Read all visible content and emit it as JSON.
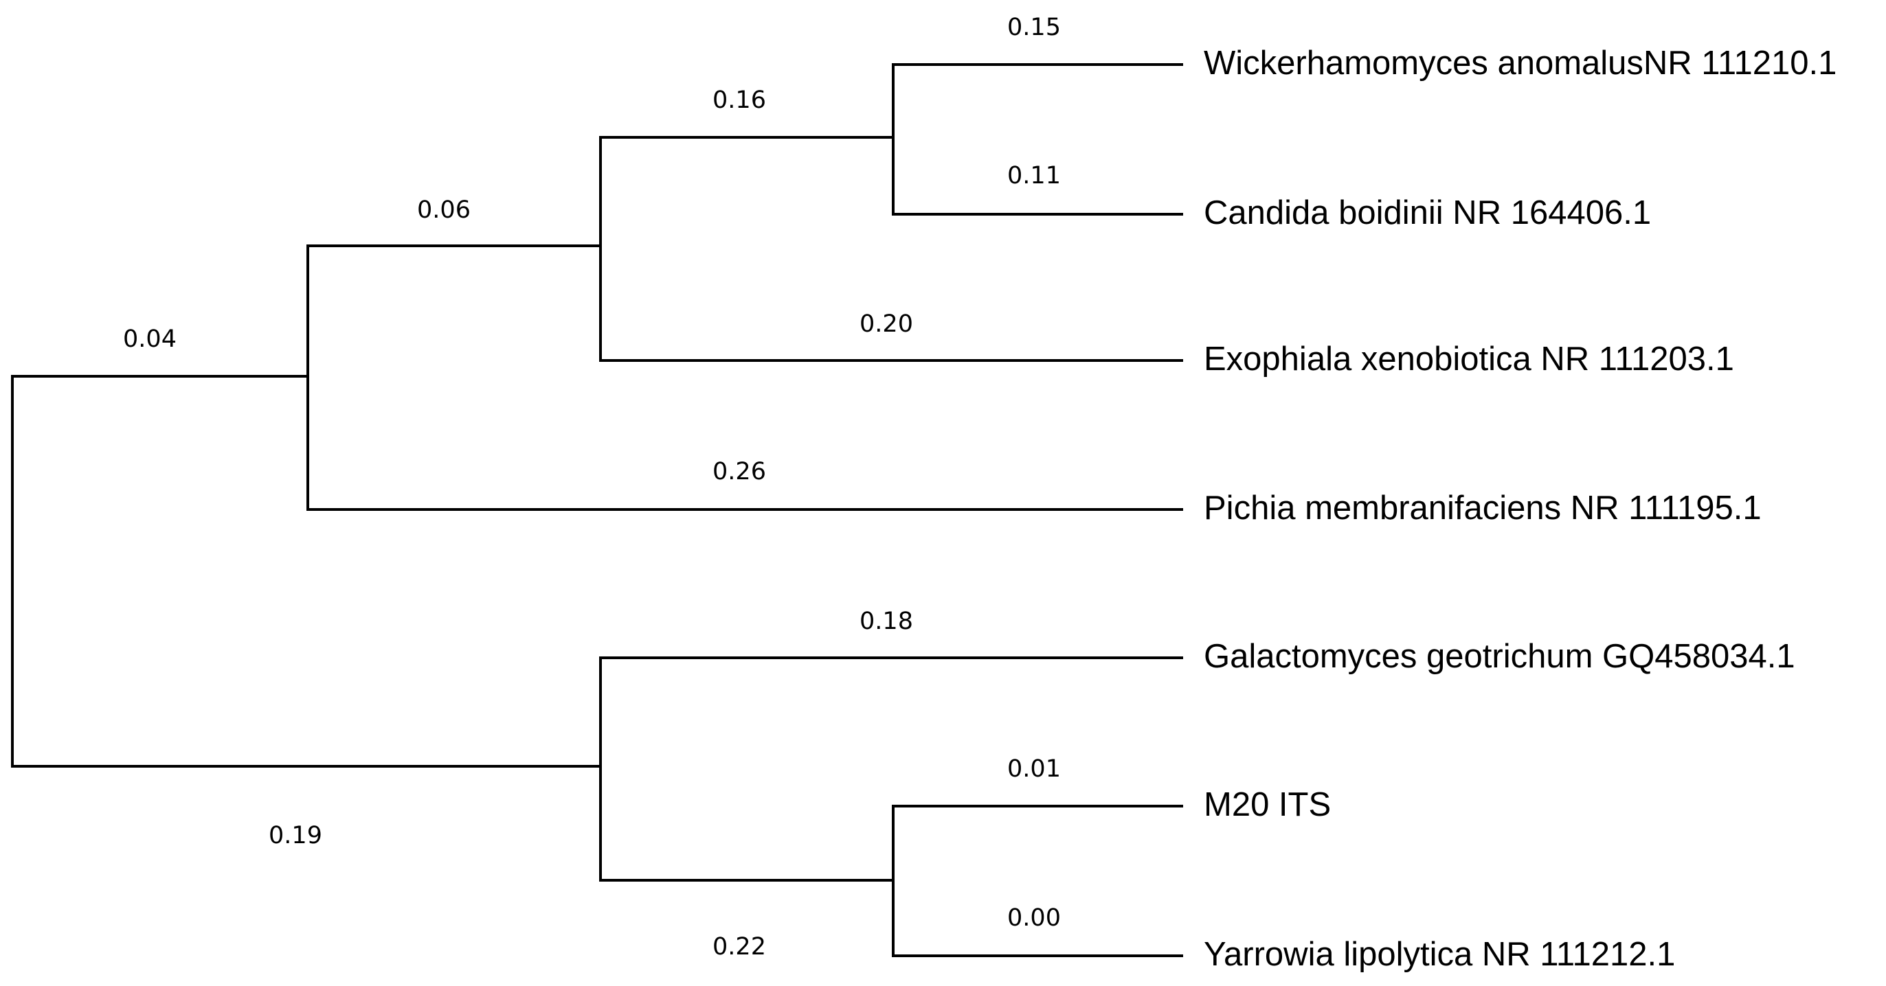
{
  "taxa": [
    {
      "id": "wickerhamomyces",
      "label": "Wickerhamomyces anomalusNR 111210.1",
      "branch_length": "0.15"
    },
    {
      "id": "candida",
      "label": "Candida boidinii NR 164406.1",
      "branch_length": "0.11"
    },
    {
      "id": "exophiala",
      "label": "Exophiala xenobiotica NR 111203.1",
      "branch_length": "0.20"
    },
    {
      "id": "pichia",
      "label": "Pichia membranifaciens NR 111195.1",
      "branch_length": "0.26"
    },
    {
      "id": "galactomyces",
      "label": "Galactomyces geotrichum GQ458034.1",
      "branch_length": "0.18"
    },
    {
      "id": "m20",
      "label": "M20 ITS",
      "branch_length": "0.01"
    },
    {
      "id": "yarrowia",
      "label": "Yarrowia lipolytica NR 111212.1",
      "branch_length": "0.00"
    }
  ],
  "internal_branches": {
    "upper_clade": "0.04",
    "lower_clade": "0.19",
    "wickerhamomyces_candida_exophiala": "0.06",
    "wickerhamomyces_candida": "0.16",
    "m20_yarrowia": "0.22"
  },
  "colors": {
    "line": "#000000",
    "text": "#000000",
    "background": "#ffffff"
  }
}
